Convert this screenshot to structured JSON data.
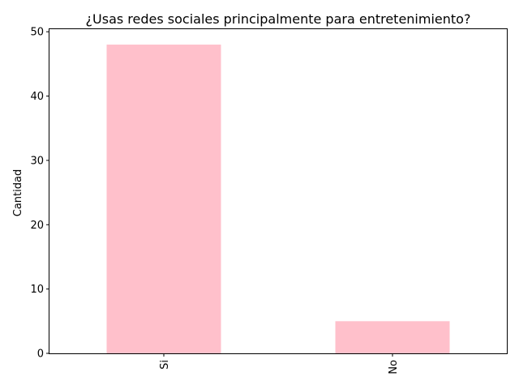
{
  "chart_data": {
    "type": "bar",
    "title": "¿Usas redes sociales principalmente para entretenimiento?",
    "xlabel": "",
    "ylabel": "Cantidad",
    "categories": [
      "Si",
      "No"
    ],
    "values": [
      48,
      5
    ],
    "ylim": [
      0,
      50.4
    ],
    "yticks": [
      0,
      10,
      20,
      30,
      40,
      50
    ],
    "bar_color": "#ffc0cb",
    "grid": false,
    "xtick_rotation": 90
  }
}
